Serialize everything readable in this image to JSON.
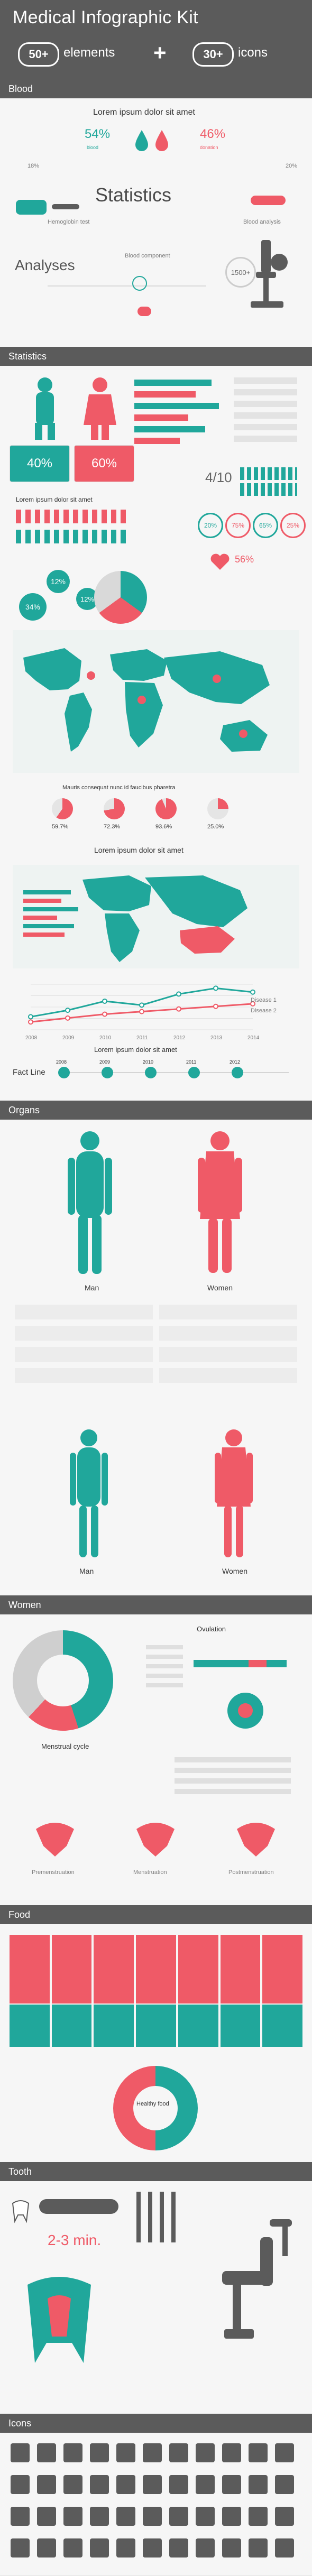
{
  "hero": {
    "title": "Medical Infographic Kit",
    "left_count": "50+",
    "left_label": "elements",
    "plus": "+",
    "right_count": "30+",
    "right_label": "icons"
  },
  "sections": {
    "blood": "Blood",
    "statistics": "Statistics",
    "organs": "Organs",
    "women": "Women",
    "food": "Food",
    "tooth": "Tooth",
    "icons": "Icons"
  },
  "blood": {
    "subtitle": "Lorem ipsum dolor sit amet",
    "left_percent": "54%",
    "right_percent": "46%",
    "left_tag": "blood",
    "right_tag": "donation",
    "statistics": "Statistics",
    "analyses": "Analyses",
    "mini_left": "18%",
    "mini_right": "20%",
    "bottom_value": "1500+",
    "caption_left": "Hemoglobin test",
    "caption_right": "Blood analysis",
    "caption_bottom": "Blood component"
  },
  "statistics": {
    "subtitle": "Lorem ipsum dolor sit amet",
    "left_card_a": "40%",
    "left_card_b": "60%",
    "bubble_a": "12%",
    "bubble_b": "34%",
    "bubble_c": "12%",
    "ratio": "4/10",
    "circle_a": "20%",
    "circle_b": "75%",
    "circle_c": "65%",
    "circle_d": "25%",
    "heart_value": "56%",
    "map_caption": "Mauris consequat nunc id faucibus pharetra",
    "map_stats": [
      "59.7%",
      "72.3%",
      "93.6%",
      "25.0%"
    ],
    "map2_title": "Lorem ipsum dolor sit amet",
    "timeline_title": "Lorem ipsum dolor sit amet",
    "fact_line": "Fact Line",
    "years": [
      "2008",
      "2009",
      "2010",
      "2011",
      "2012",
      "2013",
      "2014"
    ],
    "chart_legend": [
      "Disease 1",
      "Disease 2"
    ]
  },
  "organs": {
    "man": "Man",
    "woman": "Women",
    "man2": "Man",
    "woman2": "Women"
  },
  "women": {
    "title": "Ovulation",
    "menstrual": "Menstrual cycle",
    "premenstrual": "Premenstruation",
    "menstruation": "Menstruation",
    "postmenstrual": "Postmenstruation"
  },
  "food": {
    "healthy": "Healthy food"
  },
  "tooth": {
    "time": "2-3 min."
  },
  "chart_data": {
    "type": "line",
    "categories": [
      "2008",
      "2009",
      "2010",
      "2011",
      "2012",
      "2013",
      "2014"
    ],
    "series": [
      {
        "name": "Disease 1",
        "values": [
          20,
          30,
          44,
          38,
          55,
          64,
          58
        ]
      },
      {
        "name": "Disease 2",
        "values": [
          12,
          18,
          24,
          28,
          32,
          36,
          40
        ]
      }
    ],
    "title": "",
    "xlabel": "",
    "ylabel": "",
    "ylim": [
      0,
      70
    ],
    "grid": true,
    "legend": "right"
  },
  "colors": {
    "dark": "#5b5b5b",
    "teal": "#20a79b",
    "coral": "#ef5a67",
    "light": "#f6f6f6"
  }
}
